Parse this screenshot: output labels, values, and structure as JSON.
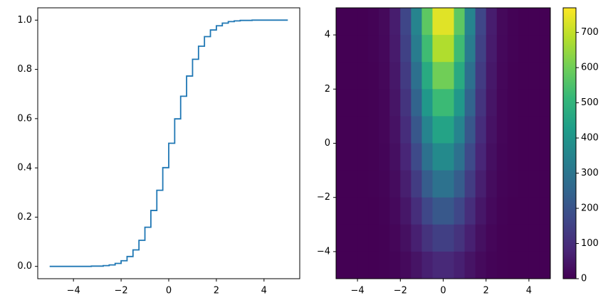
{
  "chart_data": [
    {
      "type": "step",
      "color": "#1f77b4",
      "x": [
        -5,
        -4.75,
        -4.5,
        -4.25,
        -4,
        -3.75,
        -3.5,
        -3.25,
        -3,
        -2.75,
        -2.5,
        -2.25,
        -2,
        -1.75,
        -1.5,
        -1.25,
        -1,
        -0.75,
        -0.5,
        -0.25,
        0,
        0.25,
        0.5,
        0.75,
        1,
        1.25,
        1.5,
        1.75,
        2,
        2.25,
        2.5,
        2.75,
        3,
        3.25,
        3.5,
        3.75,
        4,
        4.25,
        4.5,
        4.75,
        5
      ],
      "values": [
        0,
        0,
        0,
        0,
        0,
        0,
        0,
        0.001,
        0.001,
        0.003,
        0.006,
        0.012,
        0.023,
        0.04,
        0.067,
        0.106,
        0.159,
        0.227,
        0.309,
        0.401,
        0.5,
        0.599,
        0.691,
        0.773,
        0.841,
        0.894,
        0.933,
        0.96,
        0.977,
        0.988,
        0.994,
        0.997,
        0.999,
        0.999,
        1,
        1,
        1,
        1,
        1,
        1,
        1
      ],
      "xlim": [
        -5.5,
        5.5
      ],
      "ylim": [
        -0.05,
        1.05
      ],
      "xticks": [
        {
          "value": -4,
          "label": "−4"
        },
        {
          "value": -2,
          "label": "−2"
        },
        0,
        2,
        4
      ],
      "yticks": [
        {
          "value": 0,
          "label": "0.0"
        },
        {
          "value": 0.2,
          "label": "0.2"
        },
        {
          "value": 0.4,
          "label": "0.4"
        },
        {
          "value": 0.6,
          "label": "0.6"
        },
        {
          "value": 0.8,
          "label": "0.8"
        },
        {
          "value": 1,
          "label": "1.0"
        }
      ]
    },
    {
      "type": "heatmap",
      "colormap": "viridis",
      "xlim": [
        -5,
        5
      ],
      "ylim": [
        -5,
        5
      ],
      "clim": [
        0,
        770
      ],
      "xticks": [
        {
          "value": -4,
          "label": "−4"
        },
        {
          "value": -2,
          "label": "−2"
        },
        0,
        2,
        4
      ],
      "yticks": [
        {
          "value": -4,
          "label": "−4"
        },
        {
          "value": -2,
          "label": "−2"
        },
        0,
        2,
        4
      ],
      "cticks": [
        0,
        100,
        200,
        300,
        400,
        500,
        600,
        700
      ],
      "values": [
        [
          0,
          0,
          1,
          4,
          17,
          61,
          164,
          348,
          574,
          736,
          736,
          574,
          348,
          164,
          61,
          17,
          4,
          1,
          0,
          0
        ],
        [
          0,
          0,
          1,
          4,
          16,
          56,
          151,
          321,
          529,
          678,
          678,
          529,
          321,
          151,
          56,
          16,
          4,
          1,
          0,
          0
        ],
        [
          0,
          0,
          1,
          3,
          14,
          50,
          134,
          284,
          468,
          601,
          601,
          468,
          284,
          134,
          50,
          14,
          3,
          1,
          0,
          0
        ],
        [
          0,
          0,
          0,
          3,
          12,
          43,
          117,
          247,
          408,
          523,
          523,
          408,
          247,
          117,
          43,
          12,
          3,
          0,
          0,
          0
        ],
        [
          0,
          0,
          0,
          2,
          11,
          37,
          99,
          211,
          347,
          446,
          446,
          347,
          211,
          99,
          37,
          11,
          2,
          0,
          0,
          0
        ],
        [
          0,
          0,
          0,
          2,
          9,
          30,
          82,
          174,
          287,
          368,
          368,
          287,
          174,
          82,
          30,
          9,
          2,
          0,
          0,
          0
        ],
        [
          0,
          0,
          0,
          2,
          7,
          24,
          65,
          137,
          227,
          291,
          291,
          227,
          137,
          65,
          24,
          7,
          2,
          0,
          0,
          0
        ],
        [
          0,
          0,
          0,
          1,
          5,
          18,
          48,
          101,
          166,
          213,
          213,
          166,
          101,
          48,
          18,
          5,
          1,
          0,
          0,
          0
        ],
        [
          0,
          0,
          0,
          1,
          3,
          12,
          32,
          69,
          113,
          145,
          145,
          113,
          69,
          32,
          12,
          3,
          1,
          0,
          0,
          0
        ],
        [
          0,
          0,
          0,
          0,
          2,
          7,
          19,
          41,
          68,
          87,
          87,
          68,
          41,
          19,
          7,
          2,
          0,
          0,
          0,
          0
        ]
      ]
    }
  ]
}
